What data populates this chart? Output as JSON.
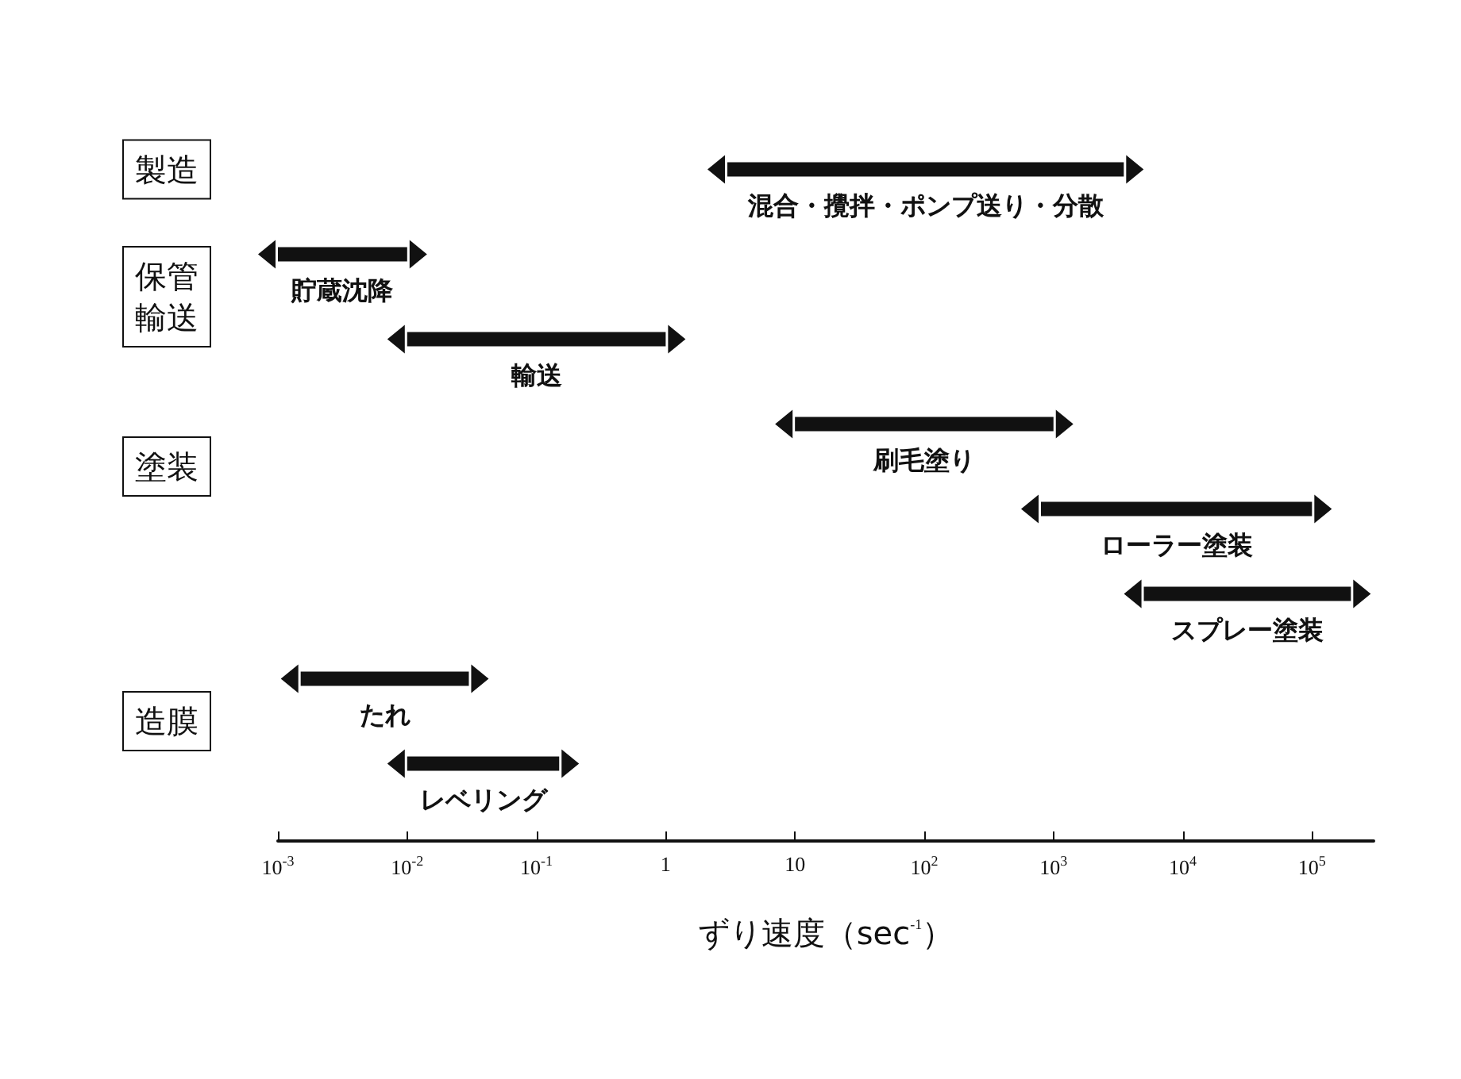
{
  "chart_data": {
    "type": "bar",
    "orientation": "horizontal",
    "log": "x",
    "xlabel": "ずり速度（sec$^{-1}$）",
    "categories": [
      "混合・攪拌・ポンプ送り・分散",
      "貯蔵沈降",
      "輸送",
      "刷毛塗り",
      "ローラー塗装",
      "スプレー塗装",
      "たれ",
      "レベリング"
    ],
    "base": [
      3,
      0.001,
      0.01,
      10,
      800,
      5000,
      0.0015,
      0.01
    ],
    "values": [
      3497,
      0.009,
      0.99,
      990,
      99200,
      195000,
      0.0285,
      0.14
    ],
    "color": "#111111",
    "xlim": [
      0.001,
      300000
    ],
    "xticks": [
      {
        "value": 0.001,
        "label": "10$^{-3}$"
      },
      {
        "value": 0.01,
        "label": "10$^{-2}$"
      },
      {
        "value": 0.1,
        "label": "10$^{-1}$"
      },
      1,
      10,
      {
        "value": 100,
        "label": "10$^{2}$"
      },
      {
        "value": 1000,
        "label": "10$^{3}$"
      },
      {
        "value": 10000,
        "label": "10$^{4}$"
      },
      {
        "value": 100000,
        "label": "10$^{5}$"
      }
    ],
    "tick_labels": "x",
    "grid": false,
    "annotations": [
      "製造",
      "保管輸送",
      "塗装",
      "造膜"
    ]
  }
}
